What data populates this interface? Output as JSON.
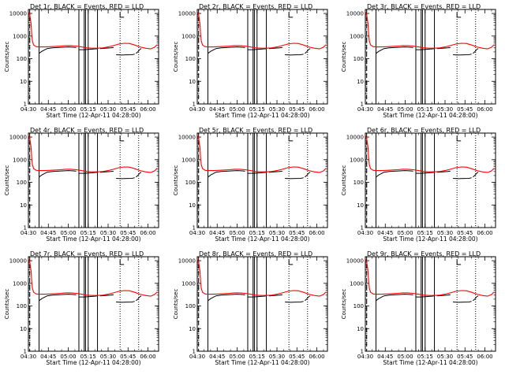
{
  "chart_data": [
    {
      "type": "line",
      "title": "Det 1r, BLACK = Events, RED = LLD"
    },
    {
      "type": "line",
      "title": "Det 2r, BLACK = Events, RED = LLD"
    },
    {
      "type": "line",
      "title": "Det 3r, BLACK = Events, RED = LLD"
    },
    {
      "type": "line",
      "title": "Det 4r, BLACK = Events, RED = LLD"
    },
    {
      "type": "line",
      "title": "Det 5r, BLACK = Events, RED = LLD"
    },
    {
      "type": "line",
      "title": "Det 6r, BLACK = Events, RED = LLD"
    },
    {
      "type": "line",
      "title": "Det 7r, BLACK = Events, RED = LLD"
    },
    {
      "type": "line",
      "title": "Det 8r, BLACK = Events, RED = LLD"
    },
    {
      "type": "line",
      "title": "Det 9r, BLACK = Events, RED = LLD"
    }
  ],
  "shared": {
    "xlabel": "Start Time (12-Apr-11 04:28:00)",
    "ylabel": "Counts/sec",
    "y_scale": "log",
    "ylim": [
      1,
      15000
    ],
    "xlim_minutes": [
      2,
      100
    ],
    "x_ticks": [
      {
        "label": "04:30",
        "min": 2
      },
      {
        "label": "04:45",
        "min": 17
      },
      {
        "label": "05:00",
        "min": 32
      },
      {
        "label": "05:15",
        "min": 47
      },
      {
        "label": "05:30",
        "min": 62
      },
      {
        "label": "05:45",
        "min": 77
      },
      {
        "label": "06:00",
        "min": 92
      }
    ],
    "y_ticks": [
      {
        "label": "1",
        "v": 1
      },
      {
        "label": "10",
        "v": 10
      },
      {
        "label": "100",
        "v": 100
      },
      {
        "label": "1000",
        "v": 1000
      },
      {
        "label": "10000",
        "v": 10000
      }
    ],
    "series_colors": {
      "events": "#000000",
      "lld": "#ff0000"
    },
    "vertical_markers": {
      "dashed": [
        3
      ],
      "solid": [
        10,
        40,
        44,
        45,
        47,
        54
      ],
      "dotted": [
        71,
        85
      ]
    },
    "lld": {
      "x": [
        2,
        3,
        4,
        4.5,
        5,
        6,
        8,
        10,
        14,
        18,
        22,
        26,
        30,
        34,
        38,
        42,
        46,
        50,
        54,
        58,
        62,
        66,
        70,
        74,
        78,
        82,
        86,
        90,
        94,
        97,
        99
      ],
      "y": [
        12000,
        9000,
        3500,
        1200,
        600,
        400,
        340,
        330,
        330,
        340,
        350,
        360,
        380,
        380,
        360,
        330,
        300,
        290,
        290,
        300,
        330,
        380,
        440,
        480,
        470,
        400,
        330,
        290,
        270,
        320,
        420
      ]
    },
    "events": [
      {
        "x": [
          10,
          12,
          16,
          20,
          24,
          28,
          32,
          36,
          38
        ],
        "y": [
          170,
          210,
          280,
          300,
          310,
          320,
          330,
          320,
          310
        ]
      },
      {
        "x": [
          40,
          44,
          48,
          52,
          54
        ],
        "y": [
          250,
          250,
          260,
          270,
          280
        ]
      },
      {
        "x": [
          56,
          60,
          64,
          66
        ],
        "y": [
          280,
          290,
          300,
          310
        ]
      },
      {
        "x": [
          68,
          72,
          76,
          80,
          82
        ],
        "y": [
          150,
          145,
          148,
          150,
          160
        ]
      },
      {
        "x": [
          83,
          85,
          86,
          87
        ],
        "y": [
          170,
          220,
          260,
          280
        ]
      }
    ],
    "l_marker": {
      "x": 71,
      "y": 8000
    }
  }
}
